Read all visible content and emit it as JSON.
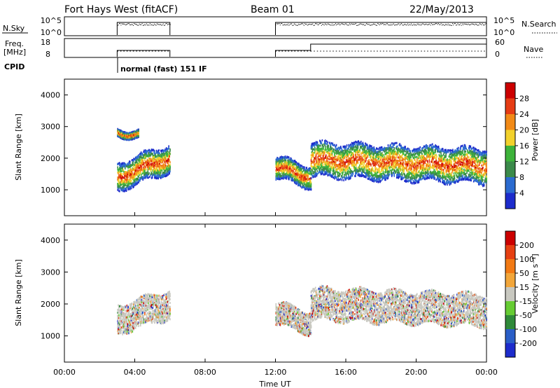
{
  "header": {
    "station": "Fort Hays West (fitACF)",
    "beam": "Beam 01",
    "date": "22/May/2013"
  },
  "param_panels": {
    "nsky": {
      "label": "N.Sky",
      "ticks": [
        "10^5",
        "10^0"
      ]
    },
    "nsearch": {
      "label": "N.Search",
      "ticks": [
        "10^5",
        "10^0"
      ]
    },
    "freq": {
      "label_top": "Freq.",
      "label_bottom": "[MHz]",
      "ticks": [
        "18",
        "8"
      ]
    },
    "nave": {
      "label": "Nave",
      "ticks": [
        "60",
        "0"
      ]
    },
    "cpid": {
      "label": "CPID",
      "mode": "normal (fast) 151 IF"
    }
  },
  "x_axis": {
    "label": "Time UT",
    "ticks": [
      "00:00",
      "04:00",
      "08:00",
      "12:00",
      "16:00",
      "20:00",
      "00:00"
    ],
    "range_hours": [
      0,
      24
    ]
  },
  "chart_data": [
    {
      "type": "heatmap",
      "name": "power",
      "ylabel": "Slant Range [km]",
      "ylim": [
        180,
        4500
      ],
      "yticks": [
        1000,
        2000,
        3000,
        4000
      ],
      "colorbar": {
        "label": "Power [dB]",
        "ticks": [
          "28",
          "24",
          "20",
          "16",
          "12",
          "8",
          "4"
        ]
      },
      "colors": [
        "#1d2ccc",
        "#2b6bd0",
        "#3b8a4a",
        "#3db33a",
        "#f2d12c",
        "#f28a17",
        "#e63c14",
        "#cc0000"
      ],
      "scatter_regions": [
        {
          "t_start": 3.0,
          "t_end": 6.0,
          "center_start": 1400,
          "center_end": 2000,
          "halfwidth": 450
        },
        {
          "t_start": 3.0,
          "t_end": 4.2,
          "center_start": 2800,
          "center_end": 2750,
          "halfwidth": 120
        },
        {
          "t_start": 12.0,
          "t_end": 14.0,
          "center_start": 1700,
          "center_end": 1400,
          "halfwidth": 350
        },
        {
          "t_start": 14.0,
          "t_end": 24.0,
          "center_start": 1950,
          "center_end": 1750,
          "halfwidth": 550
        }
      ]
    },
    {
      "type": "heatmap",
      "name": "velocity",
      "ylabel": "Slant Range [km]",
      "ylim": [
        180,
        4500
      ],
      "yticks": [
        1000,
        2000,
        3000,
        4000
      ],
      "colorbar": {
        "label": "Velocity [m s⁻¹]",
        "ticks": [
          "200",
          "100",
          "50",
          "15",
          "-15",
          "-50",
          "-100",
          "-200"
        ]
      },
      "colors": [
        "#1d2ccc",
        "#2a5ec7",
        "#2f8a3a",
        "#66cc33",
        "#c8c8c0",
        "#f2a63a",
        "#f27a14",
        "#e64012",
        "#cc0000"
      ],
      "scatter_regions": [
        {
          "t_start": 3.0,
          "t_end": 6.0,
          "center_start": 1500,
          "center_end": 2000,
          "halfwidth": 450
        },
        {
          "t_start": 12.0,
          "t_end": 14.0,
          "center_start": 1700,
          "center_end": 1400,
          "halfwidth": 350
        },
        {
          "t_start": 14.0,
          "t_end": 24.0,
          "center_start": 2000,
          "center_end": 1800,
          "halfwidth": 500
        }
      ]
    }
  ]
}
